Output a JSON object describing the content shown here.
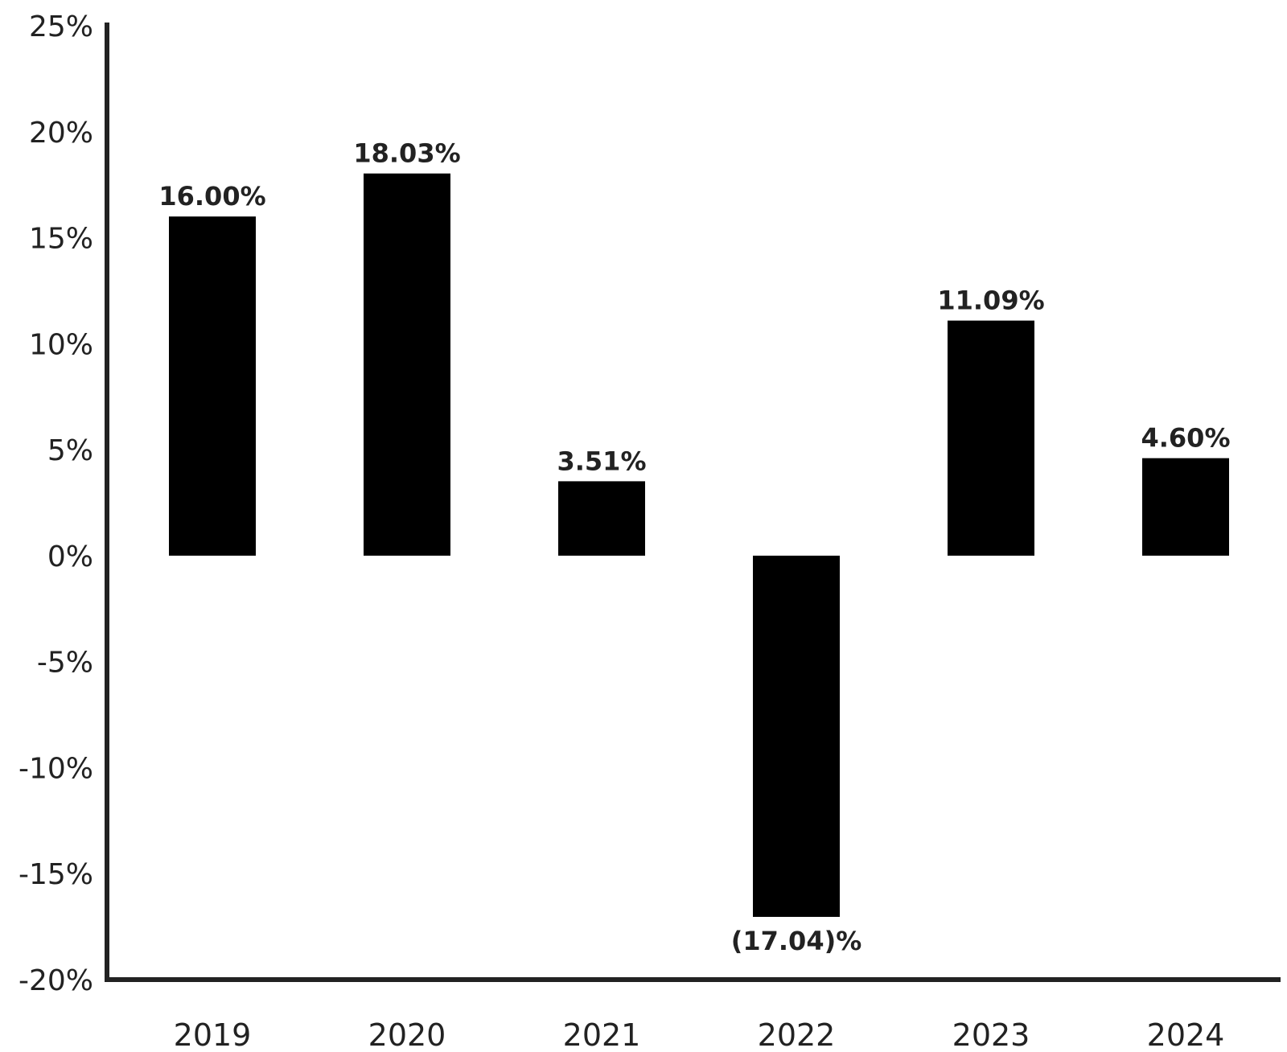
{
  "chart_data": {
    "type": "bar",
    "categories": [
      "2019",
      "2020",
      "2021",
      "2022",
      "2023",
      "2024"
    ],
    "values": [
      16.0,
      18.03,
      3.51,
      -17.04,
      11.09,
      4.6
    ],
    "data_labels": [
      "16.00%",
      "18.03%",
      "3.51%",
      "(17.04)%",
      "11.09%",
      "4.60%"
    ],
    "y_ticks": [
      25,
      20,
      15,
      10,
      5,
      0,
      -5,
      -10,
      -15,
      -20
    ],
    "y_tick_labels": [
      "25%",
      "20%",
      "15%",
      "10%",
      "5%",
      "0%",
      "-5%",
      "-10%",
      "-15%",
      "-20%"
    ],
    "ylim": [
      -20,
      25
    ],
    "grid": false,
    "legend": "none",
    "colors": {
      "bar": "#000000",
      "axis": "#222222",
      "text": "#222222"
    }
  }
}
